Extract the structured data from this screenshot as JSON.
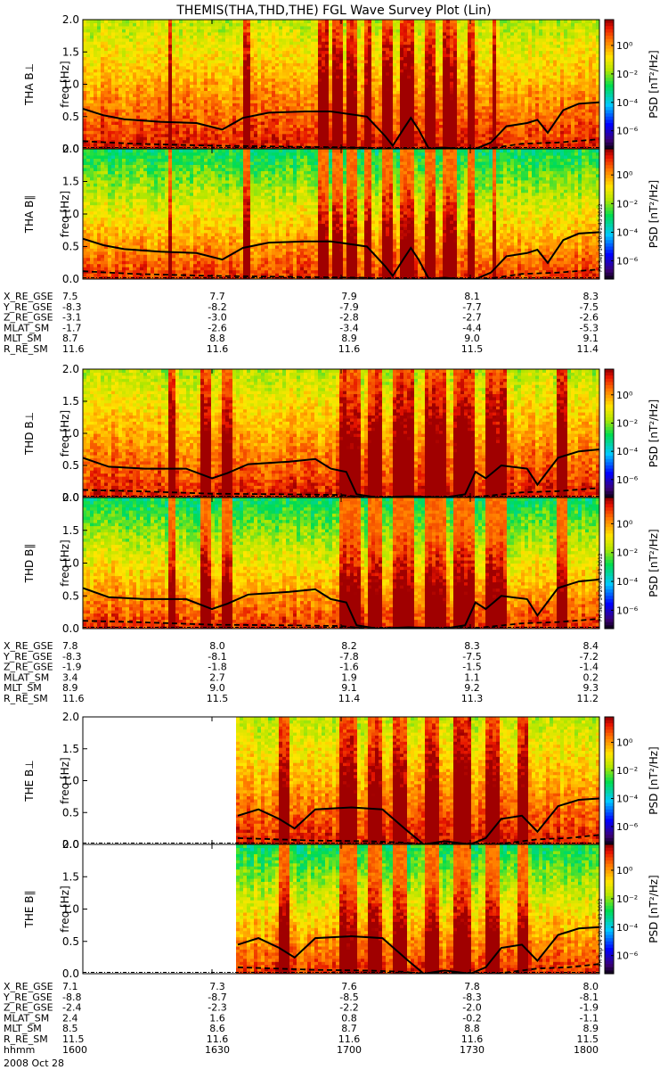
{
  "title": "THEMIS(THA,THD,THE) FGL Wave Survey Plot (Lin)",
  "chart_data": [
    {
      "type": "heatmap",
      "probe": "THA",
      "panels": [
        {
          "label": "THA B⊥",
          "ylabel": "freq [Hz]"
        },
        {
          "label": "THA B∥",
          "ylabel": "freq [Hz]"
        }
      ],
      "ylim": [
        0,
        2.0
      ],
      "yticks": [
        "0.0",
        "0.5",
        "1.0",
        "1.5",
        "2.0"
      ],
      "data_start_fraction": 0,
      "colorbar": {
        "label": "PSD [nT²/Hz]",
        "ticks": [
          "10⁰",
          "10⁻²",
          "10⁻⁴",
          "10⁻⁶"
        ],
        "log": true
      },
      "hot_bands": [
        [
          0.455,
          0.475
        ],
        [
          0.485,
          0.5
        ],
        [
          0.51,
          0.53
        ],
        [
          0.545,
          0.56
        ],
        [
          0.58,
          0.6
        ],
        [
          0.615,
          0.64
        ],
        [
          0.66,
          0.68
        ],
        [
          0.7,
          0.725
        ],
        [
          0.745,
          0.76
        ],
        [
          0.79,
          0.8
        ],
        [
          0.31,
          0.325
        ],
        [
          0.165,
          0.175
        ]
      ],
      "cutoff_line": [
        [
          0,
          0.62
        ],
        [
          0.04,
          0.52
        ],
        [
          0.08,
          0.46
        ],
        [
          0.15,
          0.42
        ],
        [
          0.22,
          0.4
        ],
        [
          0.27,
          0.3
        ],
        [
          0.31,
          0.48
        ],
        [
          0.36,
          0.56
        ],
        [
          0.43,
          0.58
        ],
        [
          0.48,
          0.58
        ],
        [
          0.55,
          0.5
        ],
        [
          0.585,
          0.2
        ],
        [
          0.6,
          0.05
        ],
        [
          0.62,
          0.3
        ],
        [
          0.635,
          0.48
        ],
        [
          0.65,
          0.3
        ],
        [
          0.67,
          0.0
        ],
        [
          0.7,
          0.02
        ],
        [
          0.73,
          0.0
        ],
        [
          0.76,
          0.0
        ],
        [
          0.79,
          0.1
        ],
        [
          0.82,
          0.35
        ],
        [
          0.86,
          0.4
        ],
        [
          0.88,
          0.45
        ],
        [
          0.9,
          0.25
        ],
        [
          0.93,
          0.6
        ],
        [
          0.96,
          0.7
        ],
        [
          1.0,
          0.72
        ]
      ],
      "lower_line": [
        [
          0,
          0.12
        ],
        [
          0.1,
          0.08
        ],
        [
          0.25,
          0.05
        ],
        [
          0.35,
          0.04
        ],
        [
          0.45,
          0.03
        ],
        [
          0.55,
          0.02
        ],
        [
          0.6,
          0.0
        ],
        [
          0.7,
          0.0
        ],
        [
          0.78,
          0.0
        ],
        [
          0.85,
          0.08
        ],
        [
          0.92,
          0.1
        ],
        [
          1.0,
          0.15
        ]
      ],
      "ephemeris": {
        "rows": [
          "X_RE_GSE",
          "Y_RE_GSE",
          "Z_RE_GSE",
          "MLAT_SM",
          "MLT_SM",
          "R_RE_SM"
        ],
        "columns": [
          [
            "7.5",
            "-8.3",
            "-3.1",
            "-1.7",
            "8.7",
            "11.6"
          ],
          [
            "7.7",
            "-8.2",
            "-3.0",
            "-2.6",
            "8.8",
            "11.6"
          ],
          [
            "7.9",
            "-7.9",
            "-2.8",
            "-3.4",
            "8.9",
            "11.6"
          ],
          [
            "8.1",
            "-7.7",
            "-2.7",
            "-4.4",
            "9.0",
            "11.5"
          ],
          [
            "8.3",
            "-7.5",
            "-2.6",
            "-5.3",
            "9.1",
            "11.4"
          ]
        ]
      }
    },
    {
      "type": "heatmap",
      "probe": "THD",
      "panels": [
        {
          "label": "THD B⊥",
          "ylabel": "freq [Hz]"
        },
        {
          "label": "THD B∥",
          "ylabel": "freq [Hz]"
        }
      ],
      "ylim": [
        0,
        2.0
      ],
      "yticks": [
        "0.0",
        "0.5",
        "1.0",
        "1.5",
        "2.0"
      ],
      "data_start_fraction": 0,
      "colorbar": {
        "label": "PSD [nT²/Hz]",
        "ticks": [
          "10⁰",
          "10⁻²",
          "10⁻⁴",
          "10⁻⁶"
        ],
        "log": true
      },
      "hot_bands": [
        [
          0.5,
          0.54
        ],
        [
          0.55,
          0.58
        ],
        [
          0.6,
          0.64
        ],
        [
          0.66,
          0.7
        ],
        [
          0.72,
          0.76
        ],
        [
          0.78,
          0.82
        ],
        [
          0.23,
          0.245
        ],
        [
          0.27,
          0.29
        ],
        [
          0.165,
          0.18
        ],
        [
          0.92,
          0.94
        ]
      ],
      "cutoff_line": [
        [
          0,
          0.62
        ],
        [
          0.05,
          0.48
        ],
        [
          0.12,
          0.45
        ],
        [
          0.2,
          0.45
        ],
        [
          0.25,
          0.3
        ],
        [
          0.28,
          0.38
        ],
        [
          0.32,
          0.52
        ],
        [
          0.4,
          0.56
        ],
        [
          0.45,
          0.6
        ],
        [
          0.48,
          0.45
        ],
        [
          0.51,
          0.4
        ],
        [
          0.53,
          0.05
        ],
        [
          0.57,
          0.0
        ],
        [
          0.63,
          0.02
        ],
        [
          0.7,
          0.0
        ],
        [
          0.74,
          0.05
        ],
        [
          0.76,
          0.4
        ],
        [
          0.78,
          0.3
        ],
        [
          0.81,
          0.5
        ],
        [
          0.86,
          0.45
        ],
        [
          0.88,
          0.2
        ],
        [
          0.92,
          0.62
        ],
        [
          0.96,
          0.72
        ],
        [
          1.0,
          0.75
        ]
      ],
      "lower_line": [
        [
          0,
          0.12
        ],
        [
          0.1,
          0.1
        ],
        [
          0.25,
          0.06
        ],
        [
          0.4,
          0.05
        ],
        [
          0.5,
          0.04
        ],
        [
          0.55,
          0.0
        ],
        [
          0.75,
          0.0
        ],
        [
          0.85,
          0.08
        ],
        [
          0.92,
          0.1
        ],
        [
          1.0,
          0.15
        ]
      ],
      "ephemeris": {
        "rows": [
          "X_RE_GSE",
          "Y_RE_GSE",
          "Z_RE_GSE",
          "MLAT_SM",
          "MLT_SM",
          "R_RE_SM"
        ],
        "columns": [
          [
            "7.8",
            "-8.3",
            "-1.9",
            "3.4",
            "8.9",
            "11.6"
          ],
          [
            "8.0",
            "-8.1",
            "-1.8",
            "2.7",
            "9.0",
            "11.5"
          ],
          [
            "8.2",
            "-7.8",
            "-1.6",
            "1.9",
            "9.1",
            "11.4"
          ],
          [
            "8.3",
            "-7.5",
            "-1.5",
            "1.1",
            "9.2",
            "11.3"
          ],
          [
            "8.4",
            "-7.2",
            "-1.4",
            "0.2",
            "9.3",
            "11.2"
          ]
        ]
      }
    },
    {
      "type": "heatmap",
      "probe": "THE",
      "panels": [
        {
          "label": "THE B⊥",
          "ylabel": "freq [Hz]"
        },
        {
          "label": "THE B∥",
          "ylabel": "freq [Hz]"
        }
      ],
      "ylim": [
        0,
        2.0
      ],
      "yticks": [
        "0.0",
        "0.5",
        "1.0",
        "1.5",
        "2.0"
      ],
      "data_start_fraction": 0.3,
      "colorbar": {
        "label": "PSD [nT²/Hz]",
        "ticks": [
          "10⁰",
          "10⁻²",
          "10⁻⁴",
          "10⁻⁶"
        ],
        "log": true
      },
      "hot_bands": [
        [
          0.5,
          0.53
        ],
        [
          0.55,
          0.58
        ],
        [
          0.6,
          0.63
        ],
        [
          0.66,
          0.69
        ],
        [
          0.72,
          0.75
        ],
        [
          0.78,
          0.81
        ],
        [
          0.84,
          0.86
        ],
        [
          0.38,
          0.4
        ]
      ],
      "cutoff_line": [
        [
          0.3,
          0.45
        ],
        [
          0.34,
          0.55
        ],
        [
          0.38,
          0.4
        ],
        [
          0.41,
          0.25
        ],
        [
          0.45,
          0.55
        ],
        [
          0.52,
          0.58
        ],
        [
          0.58,
          0.55
        ],
        [
          0.63,
          0.2
        ],
        [
          0.66,
          0.0
        ],
        [
          0.7,
          0.05
        ],
        [
          0.75,
          0.0
        ],
        [
          0.78,
          0.1
        ],
        [
          0.81,
          0.4
        ],
        [
          0.85,
          0.45
        ],
        [
          0.88,
          0.2
        ],
        [
          0.92,
          0.6
        ],
        [
          0.96,
          0.7
        ],
        [
          1.0,
          0.72
        ]
      ],
      "lower_line": [
        [
          0.3,
          0.1
        ],
        [
          0.45,
          0.06
        ],
        [
          0.55,
          0.05
        ],
        [
          0.62,
          0.03
        ],
        [
          0.66,
          0.0
        ],
        [
          0.8,
          0.0
        ],
        [
          0.88,
          0.08
        ],
        [
          0.94,
          0.1
        ],
        [
          1.0,
          0.15
        ]
      ],
      "ephemeris": {
        "rows": [
          "X_RE_GSE",
          "Y_RE_GSE",
          "Z_RE_GSE",
          "MLAT_SM",
          "MLT_SM",
          "R_RE_SM",
          "hhmm"
        ],
        "columns": [
          [
            "7.1",
            "-8.8",
            "-2.4",
            "2.4",
            "8.5",
            "11.5",
            "1600"
          ],
          [
            "7.3",
            "-8.7",
            "-2.3",
            "1.6",
            "8.6",
            "11.6",
            "1630"
          ],
          [
            "7.6",
            "-8.5",
            "-2.2",
            "0.8",
            "8.7",
            "11.6",
            "1700"
          ],
          [
            "7.8",
            "-8.3",
            "-2.0",
            "-0.2",
            "8.8",
            "11.6",
            "1730"
          ],
          [
            "8.0",
            "-8.1",
            "-1.9",
            "-1.1",
            "8.9",
            "11.5",
            "1800"
          ]
        ]
      }
    }
  ],
  "date_label": "2008 Oct 28",
  "stamp": "FH Sep 14 20:41:43 2012"
}
